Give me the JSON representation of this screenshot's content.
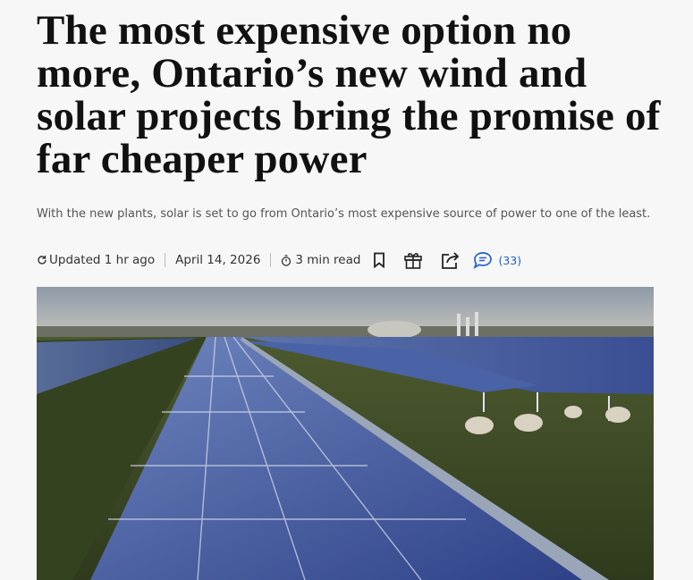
{
  "headline": "The most expensive option no more, Ontario’s new wind and solar projects bring the promise of far cheaper power",
  "subheading": "With the new plants, solar is set to go from Ontario’s most expensive source of power to one of the least.",
  "meta": {
    "updated": "Updated 1 hr ago",
    "date": "April 14, 2026",
    "read_time": "3 min read",
    "comments": "(33)"
  }
}
